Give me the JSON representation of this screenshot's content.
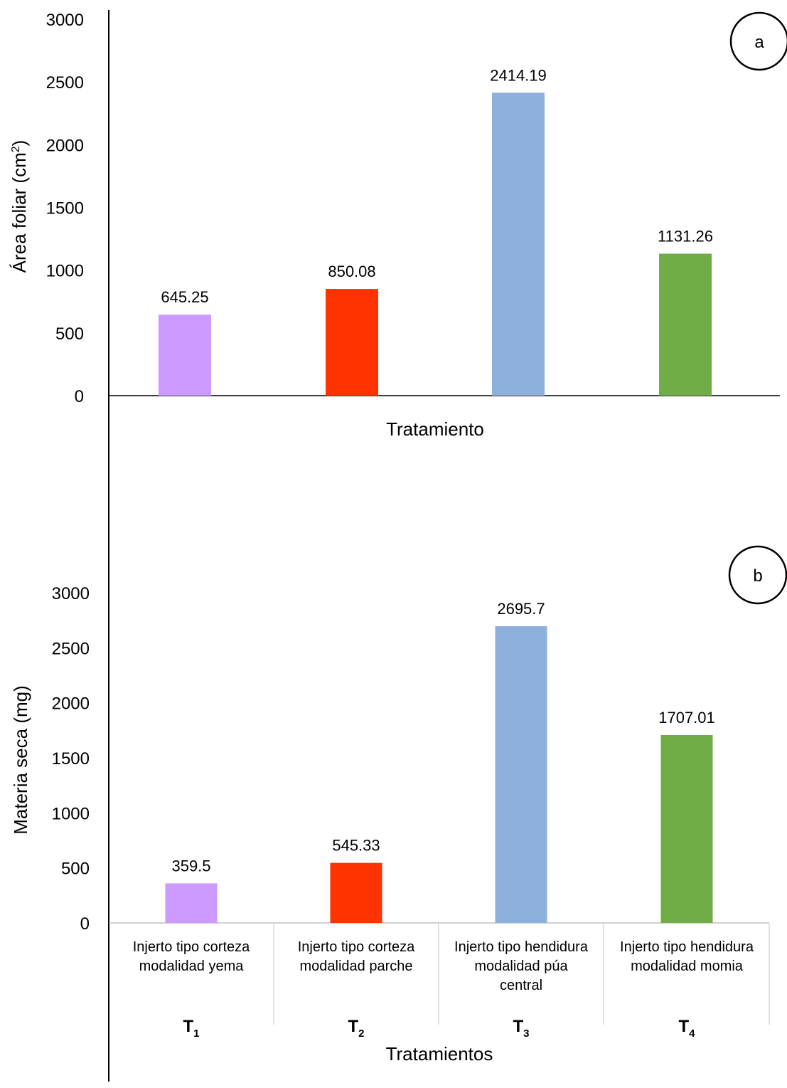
{
  "chart_data": [
    {
      "type": "bar",
      "panel_label": "a",
      "title": "",
      "xlabel": "Tratamiento",
      "ylabel_main": "Área foliar  (cm",
      "ylabel_sup": "2",
      "ylabel_end": ")",
      "ylim": [
        0,
        3000
      ],
      "yticks": [
        "0",
        "500",
        "1000",
        "1500",
        "2000",
        "2500",
        "3000"
      ],
      "values": [
        645.25,
        850.08,
        2414.19,
        1131.26
      ],
      "value_labels": [
        "645.25",
        "850.08",
        "2414.19",
        "1131.26"
      ],
      "colors": [
        "#cc99ff",
        "#ff3300",
        "#8eb0dc",
        "#70ad47"
      ]
    },
    {
      "type": "bar",
      "panel_label": "b",
      "title": "",
      "xlabel": "Tratamientos",
      "ylabel": "Materia seca (mg)",
      "ylim": [
        0,
        3000
      ],
      "yticks": [
        "0",
        "500",
        "1000",
        "1500",
        "2000",
        "2500",
        "3000"
      ],
      "categories": [
        [
          "Injerto tipo corteza",
          "modalidad yema"
        ],
        [
          "Injerto tipo corteza",
          "modalidad parche"
        ],
        [
          "Injerto tipo hendidura",
          "modalidad púa",
          "central"
        ],
        [
          "Injerto tipo hendidura",
          "modalidad momia"
        ]
      ],
      "treatments": [
        {
          "main": "T",
          "sub": "1"
        },
        {
          "main": "T",
          "sub": "2"
        },
        {
          "main": "T",
          "sub": "3"
        },
        {
          "main": "T",
          "sub": "4"
        }
      ],
      "values": [
        359.5,
        545.33,
        2695.7,
        1707.01
      ],
      "value_labels": [
        "359.5",
        "545.33",
        "2695.7",
        "1707.01"
      ],
      "colors": [
        "#cc99ff",
        "#ff3300",
        "#8eb0dc",
        "#70ad47"
      ]
    }
  ]
}
